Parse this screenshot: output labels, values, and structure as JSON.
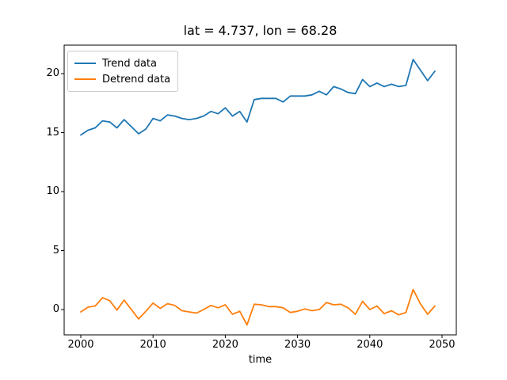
{
  "chart_data": {
    "type": "line",
    "title": "lat = 4.737, lon = 68.28",
    "xlabel": "time",
    "ylabel": "",
    "grid": false,
    "legend": {
      "position": "upper left",
      "frame": true
    },
    "x_ticks": [
      2000,
      2010,
      2020,
      2030,
      2040,
      2050
    ],
    "y_ticks": [
      0,
      5,
      10,
      15,
      20
    ],
    "xlim": [
      1997.7,
      2052.0
    ],
    "ylim": [
      -2.15,
      22.4
    ],
    "x": [
      2000,
      2001,
      2002,
      2003,
      2004,
      2005,
      2006,
      2007,
      2008,
      2009,
      2010,
      2011,
      2012,
      2013,
      2014,
      2015,
      2016,
      2017,
      2018,
      2019,
      2020,
      2021,
      2022,
      2023,
      2024,
      2025,
      2026,
      2027,
      2028,
      2029,
      2030,
      2031,
      2032,
      2033,
      2034,
      2035,
      2036,
      2037,
      2038,
      2039,
      2040,
      2041,
      2042,
      2043,
      2044,
      2045,
      2046,
      2047,
      2048,
      2049
    ],
    "series": [
      {
        "name": "Trend data",
        "color": "#1f77b4",
        "values": [
          14.8,
          15.2,
          15.4,
          16.0,
          15.9,
          15.4,
          16.1,
          15.5,
          14.9,
          15.3,
          16.2,
          16.0,
          16.5,
          16.4,
          16.2,
          16.1,
          16.2,
          16.4,
          16.8,
          16.6,
          17.1,
          16.4,
          16.8,
          15.9,
          17.8,
          17.9,
          17.9,
          17.9,
          17.6,
          18.1,
          18.1,
          18.1,
          18.2,
          18.5,
          18.2,
          18.9,
          18.7,
          18.4,
          18.3,
          19.5,
          18.9,
          19.2,
          18.9,
          19.1,
          18.9,
          19.0,
          21.2,
          20.3,
          19.4,
          20.2
        ]
      },
      {
        "name": "Detrend data",
        "color": "#ff7f0e",
        "values": [
          -0.2,
          0.2,
          0.3,
          1.0,
          0.75,
          -0.05,
          0.8,
          0.0,
          -0.8,
          -0.15,
          0.55,
          0.1,
          0.5,
          0.35,
          -0.1,
          -0.2,
          -0.3,
          0.0,
          0.35,
          0.15,
          0.4,
          -0.4,
          -0.15,
          -1.3,
          0.45,
          0.4,
          0.25,
          0.25,
          0.15,
          -0.25,
          -0.15,
          0.05,
          -0.1,
          0.0,
          0.6,
          0.4,
          0.45,
          0.15,
          -0.4,
          0.7,
          0.0,
          0.3,
          -0.35,
          -0.1,
          -0.45,
          -0.25,
          1.7,
          0.5,
          -0.4,
          0.3
        ]
      }
    ]
  }
}
